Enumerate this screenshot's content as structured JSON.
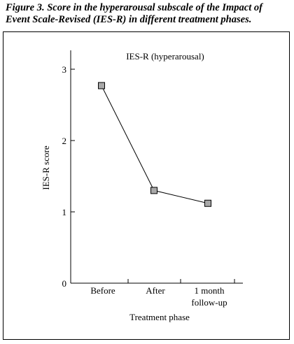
{
  "caption": "Figure 3. Score in the hyperarousal subscale of the Impact of Event Scale-Revised (IES-R) in different treatment phases.",
  "chart_data": {
    "type": "line",
    "title": "IES-R (hyperarousal)",
    "xlabel": "Treatment phase",
    "ylabel": "IES-R score",
    "categories": [
      "Before",
      "After",
      "1 month\nfollow-up"
    ],
    "series": [
      {
        "values": [
          2.77,
          1.3,
          1.12
        ]
      }
    ],
    "ylim": [
      0,
      3.2
    ],
    "yticks": [
      "0",
      "1",
      "2",
      "3"
    ],
    "grid": false,
    "marker": "square",
    "colors": {
      "line": "#000000",
      "marker_fill": "#a8a8a8",
      "marker_stroke": "#000000"
    }
  }
}
